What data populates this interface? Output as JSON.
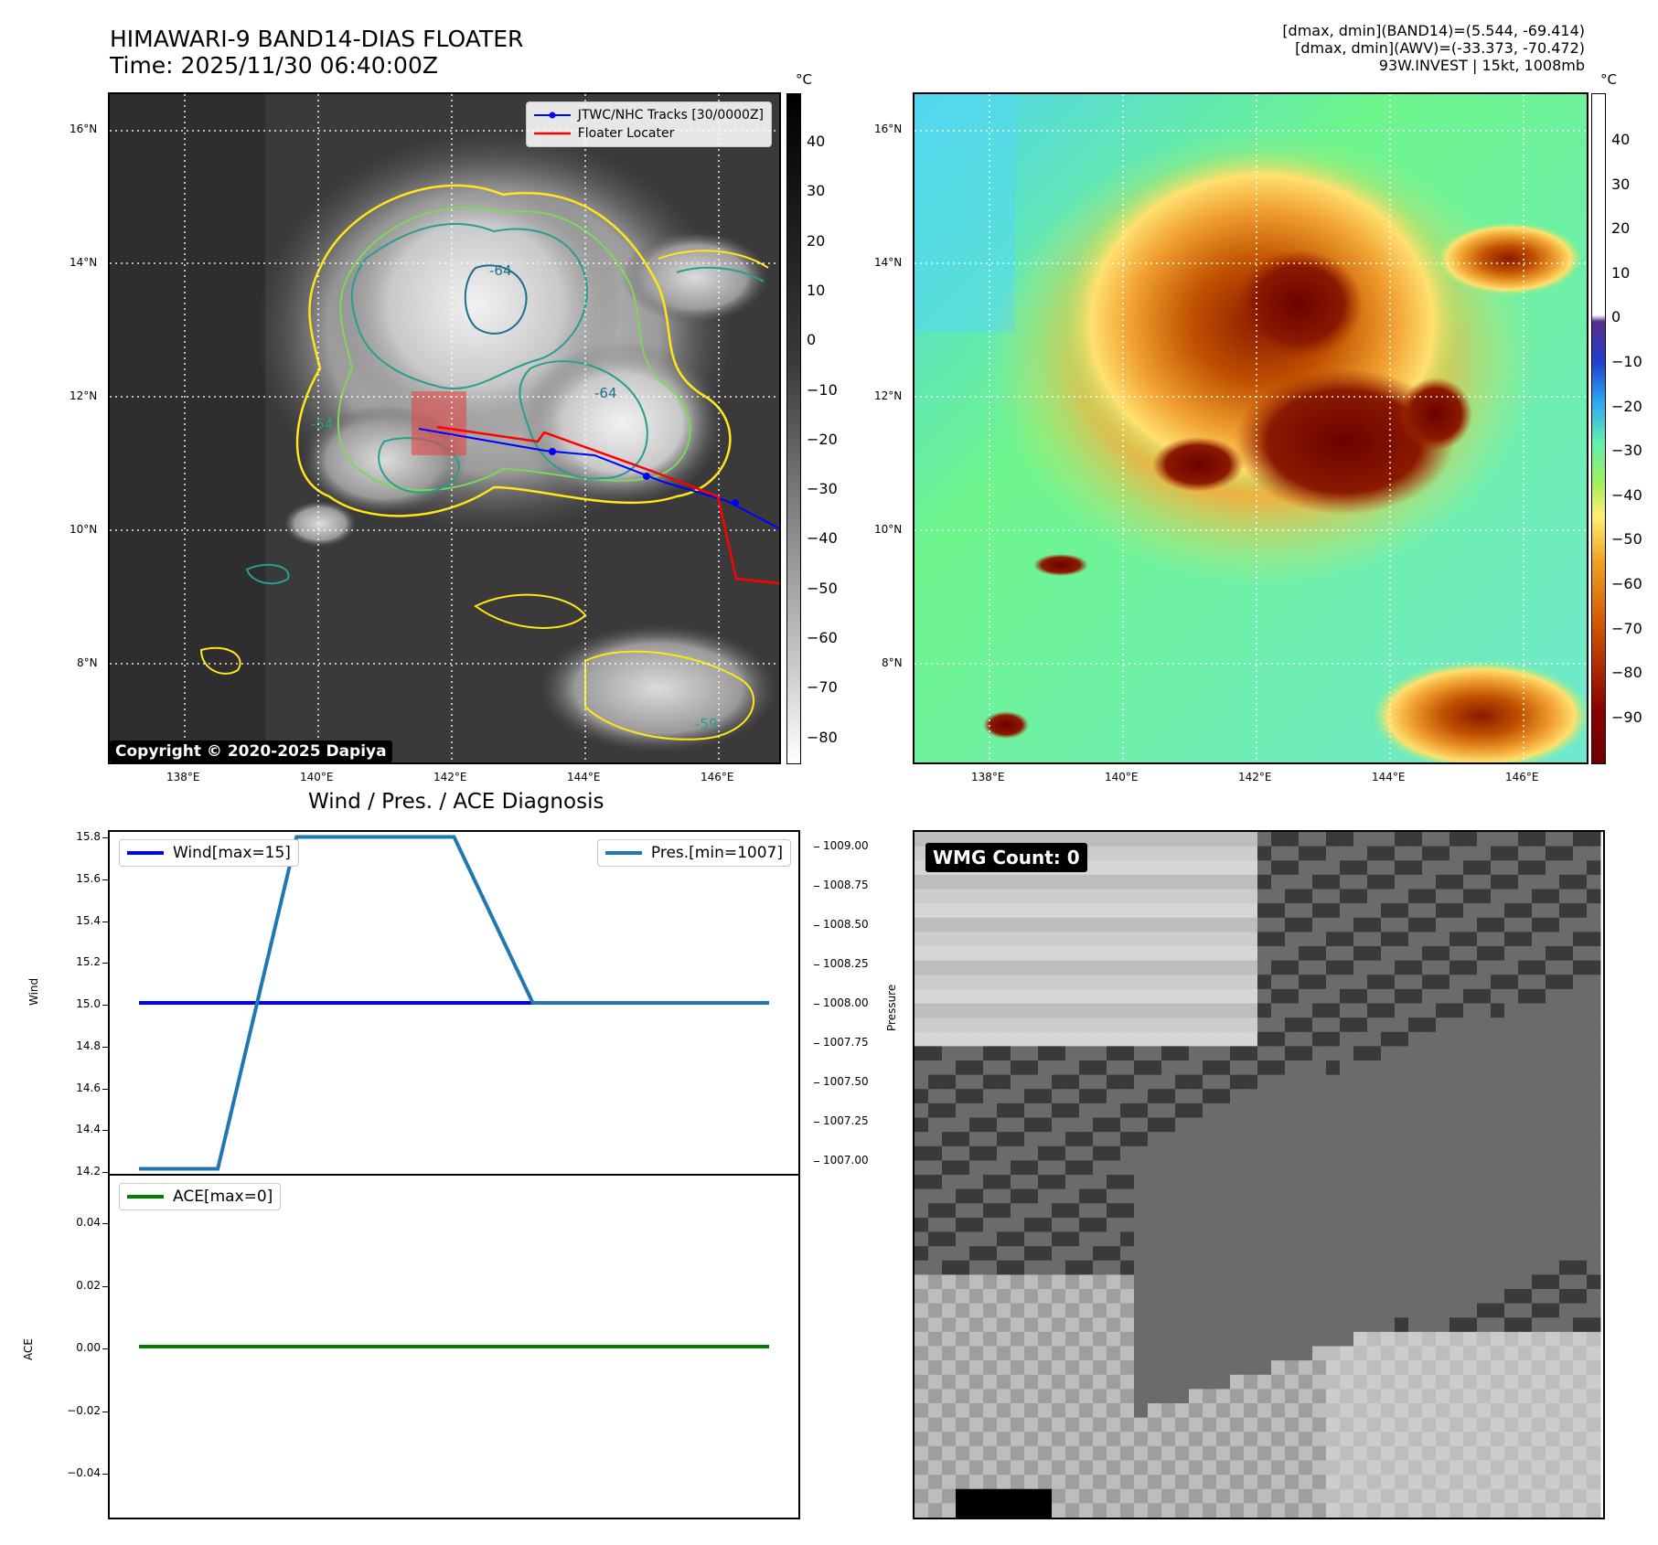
{
  "header": {
    "title_line1": "HIMAWARI-9 BAND14-DIAS FLOATER",
    "title_line2": "Time: 2025/11/30 06:40:00Z",
    "info_line1": "[dmax, dmin](BAND14)=(5.544, -69.414)",
    "info_line2": "[dmax, dmin](AWV)=(-33.373, -70.472)",
    "info_line3": "93W.INVEST | 15kt, 1008mb"
  },
  "map_ir": {
    "lat_labels": [
      "16°N",
      "14°N",
      "12°N",
      "10°N",
      "8°N"
    ],
    "lon_labels": [
      "138°E",
      "140°E",
      "142°E",
      "144°E",
      "146°E"
    ],
    "legend": {
      "tracks": "JTWC/NHC Tracks [30/0000Z]",
      "locater": "Floater Locater",
      "tracks_color": "#0000ff",
      "locater_color": "#ff0000"
    },
    "contour_labels": [
      "-64",
      "-54",
      "-64",
      "-59"
    ],
    "copyright": "Copyright © 2020-2025 Dapiya",
    "colorbar_unit": "°C",
    "colorbar_ticks": [
      "40",
      "30",
      "20",
      "10",
      "0",
      "−10",
      "−20",
      "−30",
      "−40",
      "−50",
      "−60",
      "−70",
      "−80"
    ]
  },
  "map_color": {
    "lat_labels": [
      "16°N",
      "14°N",
      "12°N",
      "10°N",
      "8°N"
    ],
    "lon_labels": [
      "138°E",
      "140°E",
      "142°E",
      "144°E",
      "146°E"
    ],
    "colorbar_unit": "°C",
    "colorbar_ticks": [
      "40",
      "30",
      "20",
      "10",
      "0",
      "−10",
      "−20",
      "−30",
      "−40",
      "−50",
      "−60",
      "−70",
      "−80",
      "−90"
    ]
  },
  "diagnosis": {
    "title": "Wind / Pres. / ACE Diagnosis",
    "wind_ylabel": "Wind",
    "pres_ylabel": "Pressure",
    "ace_ylabel": "ACE",
    "wind_legend": "Wind[max=15]",
    "pres_legend": "Pres.[min=1007]",
    "ace_legend": "ACE[max=0]",
    "wind_ticks": [
      "15.8",
      "15.6",
      "15.4",
      "15.2",
      "15.0",
      "14.8",
      "14.6",
      "14.4",
      "14.2"
    ],
    "pres_ticks": [
      "1009.00",
      "1008.75",
      "1008.50",
      "1008.25",
      "1008.00",
      "1007.75",
      "1007.50",
      "1007.25",
      "1007.00"
    ],
    "ace_ticks": [
      "0.04",
      "0.02",
      "0.00",
      "−0.02",
      "−0.04"
    ],
    "colors": {
      "wind": "#0000ff",
      "pres": "#1f77b4",
      "ace": "#008000"
    }
  },
  "chart_data": [
    {
      "type": "line",
      "title": "Wind / Pres. / ACE Diagnosis",
      "ylabel": "Wind",
      "ylim": [
        14.2,
        15.8
      ],
      "series": [
        {
          "name": "Wind[max=15]",
          "x": [
            0,
            1,
            2,
            3,
            4,
            5,
            6,
            7,
            8
          ],
          "values": [
            15,
            15,
            15,
            15,
            15,
            15,
            15,
            15,
            15
          ]
        }
      ]
    },
    {
      "type": "line",
      "ylabel": "Pressure",
      "ylim": [
        1006.97,
        1009.03
      ],
      "series": [
        {
          "name": "Pres.[min=1007]",
          "x": [
            0,
            1,
            2,
            3,
            4,
            5,
            6,
            7,
            8
          ],
          "values": [
            1007,
            1007,
            1009,
            1009,
            1009,
            1008,
            1008,
            1008,
            1008
          ]
        }
      ]
    },
    {
      "type": "line",
      "ylabel": "ACE",
      "ylim": [
        -0.055,
        0.055
      ],
      "series": [
        {
          "name": "ACE[max=0]",
          "x": [
            0,
            1,
            2,
            3,
            4,
            5,
            6,
            7,
            8
          ],
          "values": [
            0,
            0,
            0,
            0,
            0,
            0,
            0,
            0,
            0
          ]
        }
      ]
    }
  ],
  "wmg": {
    "label": "WMG Count: 0"
  }
}
